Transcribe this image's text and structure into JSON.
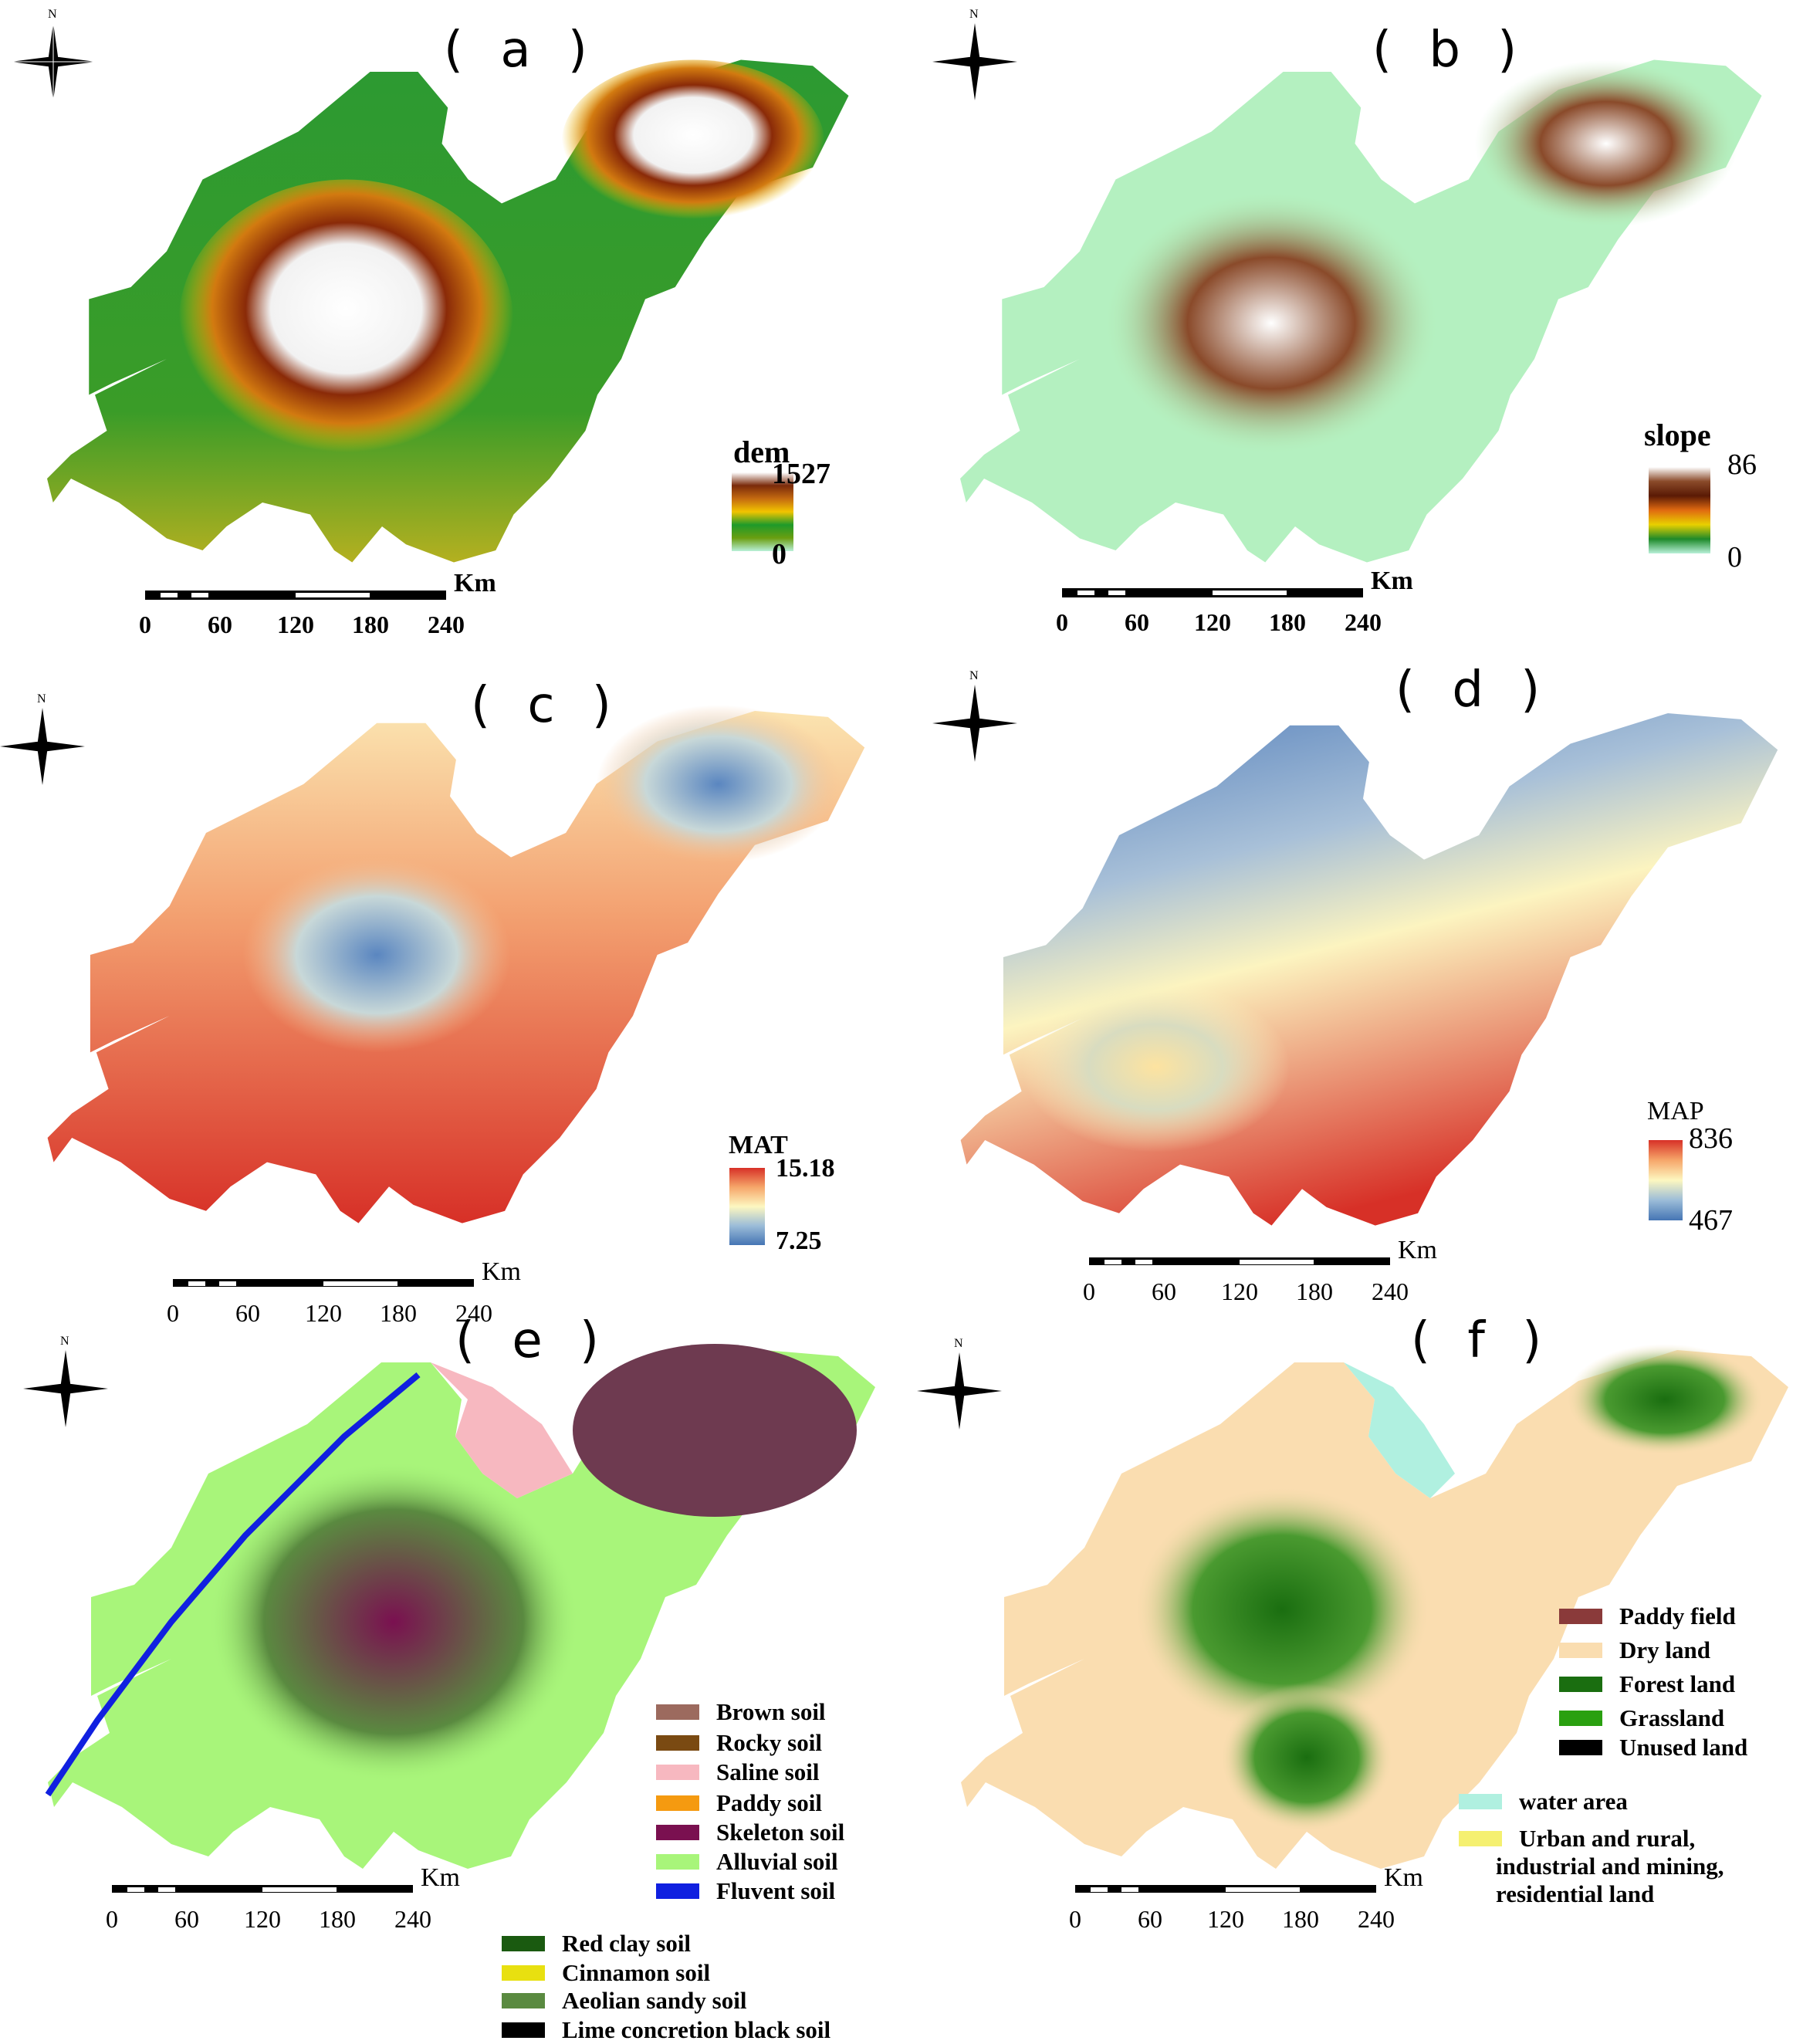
{
  "panels": {
    "a": {
      "label": "( a )",
      "legend_title": "dem",
      "max": "1527",
      "min": "0",
      "ramp": [
        "#ffffff",
        "#7a2a0a",
        "#c46a10",
        "#f2c400",
        "#1e9a2a",
        "#6a9e10",
        "#b8f0d8"
      ]
    },
    "b": {
      "label": "( b )",
      "legend_title": "slope",
      "max": "86",
      "min": "0",
      "ramp": [
        "#ffffff",
        "#8a4a2a",
        "#5a1a05",
        "#e06a10",
        "#e8d000",
        "#1e8a2a",
        "#b8f0d8"
      ]
    },
    "c": {
      "label": "( c )",
      "legend_title": "MAT",
      "max": "15.18",
      "min": "7.25",
      "ramp": [
        "#d73027",
        "#f6a66a",
        "#fdf7c0",
        "#9bbcd8",
        "#4575b4"
      ]
    },
    "d": {
      "label": "( d )",
      "legend_title": "MAP",
      "max": "836",
      "min": "467",
      "ramp": [
        "#d73027",
        "#f6a66a",
        "#fdf7c0",
        "#9bbcd8",
        "#4575b4"
      ]
    },
    "e": {
      "label": "( e )",
      "categories": [
        {
          "name": "Brown soil",
          "color": "#9c6a5e"
        },
        {
          "name": "Rocky soil",
          "color": "#7a4a12"
        },
        {
          "name": "Saline soil",
          "color": "#f7b8c0"
        },
        {
          "name": "Paddy soil",
          "color": "#f59a10"
        },
        {
          "name": "Skeleton soil",
          "color": "#7a1050"
        },
        {
          "name": "Alluvial soil",
          "color": "#a8f57a"
        },
        {
          "name": "Fluvent soil",
          "color": "#1020e0"
        },
        {
          "name": "Red clay soil",
          "color": "#1a5a10"
        },
        {
          "name": "Cinnamon soil",
          "color": "#e8e010"
        },
        {
          "name": "Aeolian sandy soil",
          "color": "#5a8a40"
        },
        {
          "name": "Lime concretion black soil",
          "color": "#000000"
        }
      ]
    },
    "f": {
      "label": "( f )",
      "categories": [
        {
          "name": "Paddy field",
          "color": "#8a3a3a"
        },
        {
          "name": "Dry land",
          "color": "#faddb0"
        },
        {
          "name": "Forest land",
          "color": "#1a6e10"
        },
        {
          "name": "Grassland",
          "color": "#2aa010"
        },
        {
          "name": "Unused land",
          "color": "#000000"
        },
        {
          "name": "water area",
          "color": "#b0f0e0"
        },
        {
          "name": "Urban and rural, industrial and mining, residential land",
          "color": "#f5f070"
        }
      ],
      "urban_lines": [
        "Urban and rural,",
        "industrial and mining,",
        "residential land"
      ]
    }
  },
  "north_label": "N",
  "scale": {
    "unit": "Km",
    "ticks": [
      "0",
      "60",
      "120",
      "180",
      "240"
    ]
  }
}
